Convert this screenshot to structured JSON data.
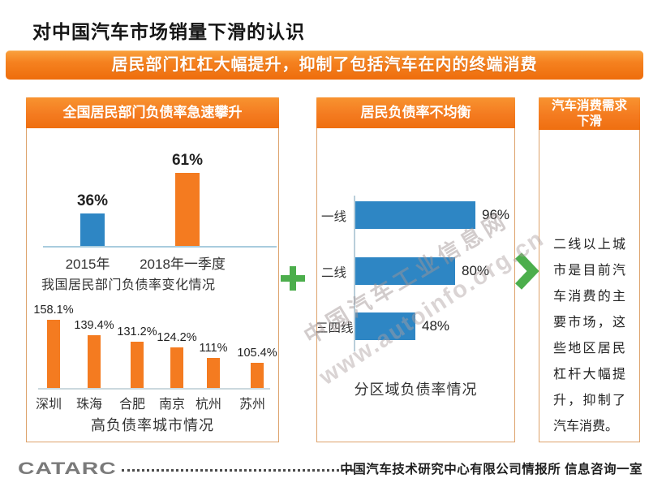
{
  "page": {
    "title": "对中国汽车市场销量下滑的认识",
    "banner": "居民部门杠杠大幅提升，抑制了包括汽车在内的终端消费"
  },
  "panels": {
    "left": {
      "header": "全国居民部门负债率急速攀升"
    },
    "middle": {
      "header": "居民负债率不均衡"
    },
    "right": {
      "header": "汽车消费需求下滑",
      "body": "二线以上城市是目前汽车消费的主要市场，这些地区居民杠杆大幅提升，抑制了汽车消费。"
    }
  },
  "icons": {
    "plus": "plus-icon",
    "chevron": "chevron-right-icon"
  },
  "watermark": {
    "line1": "中国汽车工业信息网",
    "line2": "www.autoinfo.org.cn"
  },
  "footer": {
    "logo": "CATARC",
    "org": "中国汽车技术研究中心有限公司情报所  信息咨询一室"
  },
  "colors": {
    "orange": "#F47B20",
    "blue": "#2E86C4",
    "green": "#4CAE4C",
    "panel_border": "#DDA26B",
    "watermark_gray": "#A09494"
  },
  "chart_data": [
    {
      "type": "bar",
      "title": "我国居民部门负债率变化情况",
      "categories": [
        "2015年",
        "2018年一季度"
      ],
      "values": [
        36,
        61
      ],
      "value_labels": [
        "36%",
        "61%"
      ],
      "unit": "%",
      "bar_colors": [
        "#2E86C4",
        "#F47B20"
      ],
      "grid": false,
      "legend": "none"
    },
    {
      "type": "bar",
      "title": "高负债率城市情况",
      "categories": [
        "深圳",
        "珠海",
        "合肥",
        "南京",
        "杭州",
        "苏州"
      ],
      "values": [
        158.1,
        139.4,
        131.2,
        124.2,
        111,
        105.4
      ],
      "value_labels": [
        "158.1%",
        "139.4%",
        "131.2%",
        "124.2%",
        "111%",
        "105.4%"
      ],
      "unit": "%",
      "bar_color": "#F47B20",
      "grid": false,
      "legend": "none"
    },
    {
      "type": "bar-horizontal",
      "title": "分区域负债率情况",
      "categories": [
        "一线",
        "二线",
        "三四线"
      ],
      "values": [
        96,
        80,
        48
      ],
      "value_labels": [
        "96%",
        "80%",
        "48%"
      ],
      "unit": "%",
      "bar_color": "#2E86C4",
      "grid": false,
      "legend": "none"
    }
  ]
}
